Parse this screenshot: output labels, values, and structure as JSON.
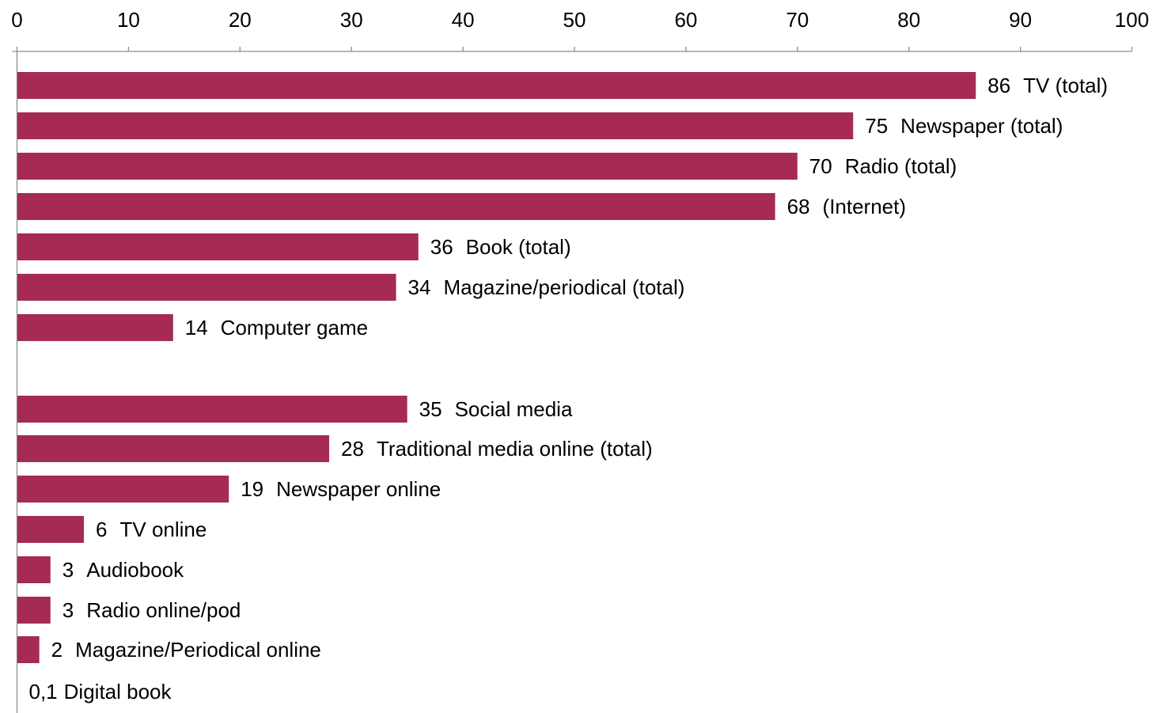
{
  "chart_data": {
    "type": "bar",
    "orientation": "horizontal",
    "title": "",
    "xlabel": "",
    "ylabel": "",
    "xlim": [
      0,
      100
    ],
    "x_axis_position": "top",
    "x_ticks": [
      0,
      10,
      20,
      30,
      40,
      50,
      60,
      70,
      80,
      90,
      100
    ],
    "grid": false,
    "legend": "none",
    "bar_color": "#A52A54",
    "categories": [
      "TV (total)",
      "Newspaper (total)",
      "Radio (total)",
      "(Internet)",
      "Book (total)",
      "Magazine/periodical (total)",
      "Computer game",
      "Social media",
      "Traditional media online (total)",
      "Newspaper online",
      "TV online",
      "Audiobook",
      "Radio online/pod",
      "Magazine/Periodical online",
      "Digital book"
    ],
    "values": [
      86,
      75,
      70,
      68,
      36,
      34,
      14,
      35,
      28,
      19,
      6,
      3,
      3,
      2,
      0.1
    ],
    "value_labels": [
      "86",
      "75",
      "70",
      "68",
      "36",
      "34",
      "14",
      "35",
      "28",
      "19",
      "6",
      "3",
      "3",
      "2",
      "0,1"
    ]
  }
}
